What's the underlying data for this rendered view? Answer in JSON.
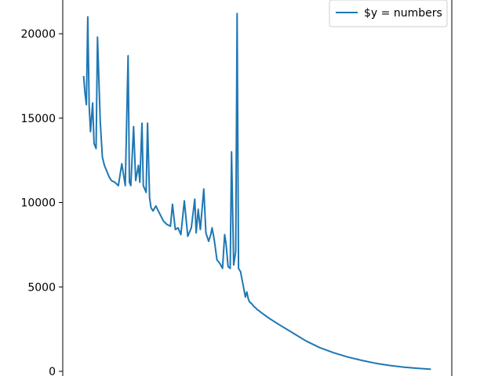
{
  "chart_data": {
    "type": "line",
    "title": "",
    "xlabel": "",
    "ylabel": "",
    "ylim": [
      0,
      22000
    ],
    "xlim": [
      -30,
      530
    ],
    "yticks": [
      0,
      5000,
      10000,
      15000,
      20000
    ],
    "ytick_labels": [
      "0",
      "5000",
      "10000",
      "15000",
      "20000"
    ],
    "grid": false,
    "legend": {
      "placement": "top-right",
      "entries": [
        "$y = numbers"
      ]
    },
    "colors": {
      "series": "#1f77b4",
      "axes": "#000000",
      "legend_border": "#cccccc"
    },
    "series": [
      {
        "name": "$y = numbers",
        "x": [
          0,
          2,
          4,
          6,
          8,
          10,
          13,
          15,
          18,
          20,
          24,
          27,
          30,
          33,
          37,
          40,
          45,
          50,
          55,
          60,
          64,
          66,
          68,
          72,
          75,
          79,
          81,
          84,
          86,
          90,
          92,
          95,
          97,
          100,
          104,
          110,
          115,
          120,
          125,
          128,
          132,
          136,
          140,
          145,
          150,
          155,
          160,
          162,
          165,
          168,
          173,
          176,
          180,
          183,
          185,
          188,
          192,
          196,
          200,
          203,
          205,
          208,
          211,
          213,
          216,
          219,
          221,
          223,
          226,
          231,
          233,
          235,
          237,
          239,
          242,
          244,
          246,
          248,
          250,
          252,
          255,
          260,
          265,
          280,
          300,
          320,
          340,
          360,
          380,
          400,
          420,
          440,
          460,
          480,
          500
        ],
        "y": [
          17500,
          16500,
          15800,
          21000,
          15700,
          14200,
          15900,
          13500,
          13200,
          19800,
          14800,
          12700,
          12200,
          11900,
          11500,
          11300,
          11200,
          11000,
          12300,
          11000,
          18700,
          11200,
          11000,
          14500,
          11300,
          12200,
          11200,
          14700,
          11000,
          10600,
          14700,
          10300,
          9700,
          9500,
          9800,
          9300,
          8900,
          8700,
          8600,
          9900,
          8400,
          8500,
          8100,
          10100,
          8000,
          8500,
          10200,
          8200,
          9600,
          8400,
          10800,
          8200,
          7700,
          8100,
          8500,
          7800,
          6600,
          6400,
          6100,
          8100,
          7600,
          6200,
          6100,
          13000,
          6300,
          7100,
          21200,
          6100,
          5900,
          4800,
          4400,
          4700,
          4300,
          4100,
          4000,
          3900,
          3800,
          3750,
          3650,
          3600,
          3500,
          3350,
          3200,
          2800,
          2300,
          1800,
          1400,
          1100,
          850,
          650,
          480,
          350,
          250,
          180,
          120
        ]
      }
    ]
  }
}
